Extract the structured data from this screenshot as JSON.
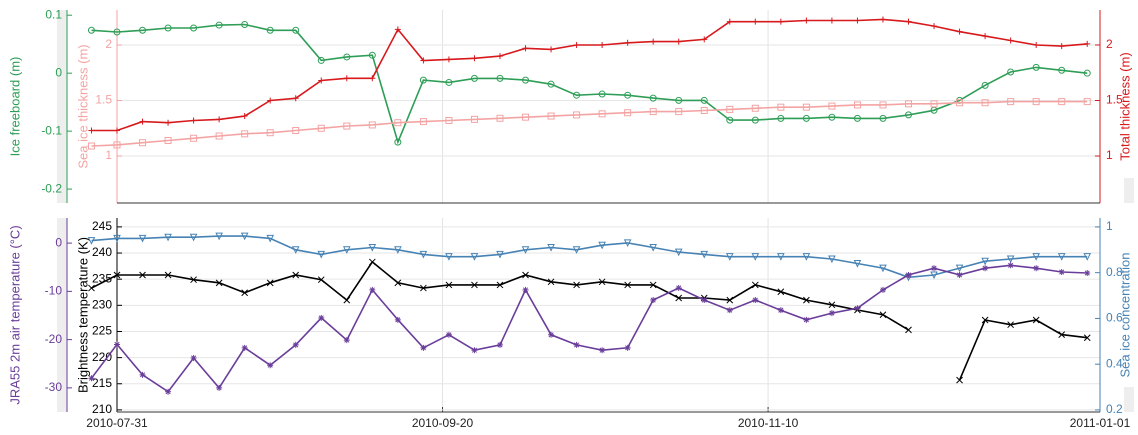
{
  "chart_data": [
    {
      "type": "line",
      "x": [
        "2010-07-27",
        "2010-07-31",
        "2010-08-04",
        "2010-08-08",
        "2010-08-12",
        "2010-08-16",
        "2010-08-20",
        "2010-08-24",
        "2010-08-28",
        "2010-09-01",
        "2010-09-05",
        "2010-09-09",
        "2010-09-13",
        "2010-09-17",
        "2010-09-21",
        "2010-09-25",
        "2010-09-29",
        "2010-10-03",
        "2010-10-07",
        "2010-10-11",
        "2010-10-15",
        "2010-10-19",
        "2010-10-23",
        "2010-10-27",
        "2010-10-31",
        "2010-11-04",
        "2010-11-08",
        "2010-11-12",
        "2010-11-16",
        "2010-11-20",
        "2010-11-24",
        "2010-11-28",
        "2010-12-02",
        "2010-12-06",
        "2010-12-10",
        "2010-12-14",
        "2010-12-18",
        "2010-12-22",
        "2010-12-26",
        "2010-12-30"
      ],
      "xlim": [
        "2010-07-31",
        "2011-01-01"
      ],
      "yaxes": [
        {
          "label": "Ice freeboard (m)",
          "color": "#2e9e57",
          "ylim": [
            -0.224,
            0.109
          ],
          "yticks": [
            -0.2,
            -0.1,
            0,
            0.1
          ]
        },
        {
          "label": "Sea ice thickness (m)",
          "color": "#f4a3a3",
          "ylim": [
            0.577,
            2.315
          ],
          "yticks": [
            1,
            1.5,
            2
          ]
        },
        {
          "label": "Total thickness (m)",
          "color": "#d7191c",
          "ylim": [
            0.577,
            2.315
          ],
          "yticks": [
            1,
            1.5,
            2
          ]
        }
      ],
      "series": [
        {
          "name": "Ice freeboard",
          "axis": 0,
          "color": "#2e9e57",
          "marker": "circle",
          "values": [
            0.074,
            0.071,
            0.074,
            0.078,
            0.078,
            0.083,
            0.084,
            0.074,
            0.074,
            0.022,
            0.028,
            0.031,
            -0.119,
            -0.012,
            -0.016,
            -0.009,
            -0.009,
            -0.012,
            -0.019,
            -0.038,
            -0.036,
            -0.038,
            -0.043,
            -0.047,
            -0.047,
            -0.081,
            -0.081,
            -0.078,
            -0.078,
            -0.076,
            -0.078,
            -0.078,
            -0.072,
            -0.064,
            -0.047,
            -0.021,
            0.002,
            0.01,
            0.005,
            0.0
          ]
        },
        {
          "name": "Sea ice thickness",
          "axis": 1,
          "color": "#f4a3a3",
          "marker": "square",
          "values": [
            1.09,
            1.1,
            1.12,
            1.14,
            1.16,
            1.18,
            1.2,
            1.21,
            1.23,
            1.25,
            1.27,
            1.28,
            1.3,
            1.31,
            1.32,
            1.33,
            1.34,
            1.35,
            1.36,
            1.37,
            1.38,
            1.39,
            1.4,
            1.4,
            1.41,
            1.42,
            1.43,
            1.44,
            1.44,
            1.45,
            1.46,
            1.46,
            1.47,
            1.47,
            1.48,
            1.48,
            1.49,
            1.49,
            1.49,
            1.49
          ]
        },
        {
          "name": "Total thickness",
          "axis": 2,
          "color": "#d7191c",
          "marker": "plus",
          "values": [
            1.23,
            1.23,
            1.31,
            1.3,
            1.32,
            1.33,
            1.36,
            1.5,
            1.52,
            1.68,
            1.7,
            1.7,
            2.14,
            1.86,
            1.87,
            1.88,
            1.9,
            1.97,
            1.96,
            2.0,
            2.0,
            2.02,
            2.03,
            2.03,
            2.05,
            2.21,
            2.21,
            2.21,
            2.22,
            2.22,
            2.22,
            2.23,
            2.21,
            2.17,
            2.12,
            2.08,
            2.04,
            2.0,
            1.99,
            2.01
          ]
        }
      ]
    },
    {
      "type": "line",
      "x": [
        "2010-07-27",
        "2010-07-31",
        "2010-08-04",
        "2010-08-08",
        "2010-08-12",
        "2010-08-16",
        "2010-08-20",
        "2010-08-24",
        "2010-08-28",
        "2010-09-01",
        "2010-09-05",
        "2010-09-09",
        "2010-09-13",
        "2010-09-17",
        "2010-09-21",
        "2010-09-25",
        "2010-09-29",
        "2010-10-03",
        "2010-10-07",
        "2010-10-11",
        "2010-10-15",
        "2010-10-19",
        "2010-10-23",
        "2010-10-27",
        "2010-10-31",
        "2010-11-04",
        "2010-11-08",
        "2010-11-12",
        "2010-11-16",
        "2010-11-20",
        "2010-11-24",
        "2010-11-28",
        "2010-12-02",
        "2010-12-06",
        "2010-12-10",
        "2010-12-14",
        "2010-12-18",
        "2010-12-22",
        "2010-12-26",
        "2010-12-30"
      ],
      "xlim": [
        "2010-07-31",
        "2011-01-01"
      ],
      "xticks": [
        "2010-07-31",
        "2010-09-20",
        "2010-11-10",
        "2011-01-01"
      ],
      "yaxes": [
        {
          "label": "JRA55 2m air temperature (°C)",
          "color": "#6a3d9a",
          "ylim": [
            -35,
            5.2
          ],
          "yticks": [
            -30,
            -20,
            -10,
            0
          ]
        },
        {
          "label": "Brightness temperature (K)",
          "color": "#000000",
          "ylim": [
            209.6,
            246.7
          ],
          "yticks": [
            210,
            215,
            220,
            225,
            230,
            235,
            240,
            245
          ]
        },
        {
          "label": "Sea ice concentration",
          "color": "#4682b4",
          "ylim": [
            0.191,
            1.039
          ],
          "yticks": [
            0.2,
            0.4,
            0.6,
            0.8,
            1
          ]
        }
      ],
      "series": [
        {
          "name": "Sea ice concentration",
          "axis": 2,
          "color": "#4682b4",
          "marker": "triangle",
          "values": [
            0.94,
            0.95,
            0.95,
            0.955,
            0.955,
            0.96,
            0.96,
            0.95,
            0.9,
            0.88,
            0.9,
            0.91,
            0.9,
            0.88,
            0.87,
            0.87,
            0.88,
            0.9,
            0.91,
            0.9,
            0.92,
            0.93,
            0.91,
            0.89,
            0.88,
            0.87,
            0.87,
            0.87,
            0.87,
            0.86,
            0.84,
            0.82,
            0.78,
            0.79,
            0.82,
            0.85,
            0.86,
            0.87,
            0.87,
            0.87
          ]
        },
        {
          "name": "Brightness temperature",
          "axis": 1,
          "color": "#000000",
          "marker": "x",
          "values": [
            233.3,
            235.8,
            235.8,
            235.8,
            234.9,
            234.3,
            232.4,
            234.3,
            235.8,
            234.9,
            231.0,
            238.3,
            234.3,
            233.3,
            233.9,
            233.9,
            233.9,
            235.8,
            234.5,
            233.9,
            234.5,
            233.9,
            233.9,
            231.4,
            231.4,
            231.0,
            233.9,
            232.6,
            231.0,
            230.1,
            229.1,
            228.2,
            225.3,
            null,
            215.7,
            227.2,
            226.3,
            227.2,
            224.4,
            223.8
          ]
        },
        {
          "name": "JRA55 2m air temperature",
          "axis": 0,
          "color": "#6a3d9a",
          "marker": "star",
          "values": [
            -28,
            -21,
            -27.3,
            -30.8,
            -23.8,
            -30,
            -21.7,
            -25.3,
            -21.1,
            -15.5,
            -20.1,
            -9.7,
            -15.9,
            -21.7,
            -19,
            -22.2,
            -21.1,
            -9.7,
            -19,
            -21.1,
            -22.2,
            -21.7,
            -11.8,
            -9.3,
            -11.8,
            -13.9,
            -11.8,
            -13.9,
            -15.9,
            -14.5,
            -13.5,
            -9.7,
            -6.6,
            -5.2,
            -6.6,
            -5.2,
            -4.6,
            -5.2,
            -6,
            -6.2
          ]
        }
      ]
    }
  ]
}
